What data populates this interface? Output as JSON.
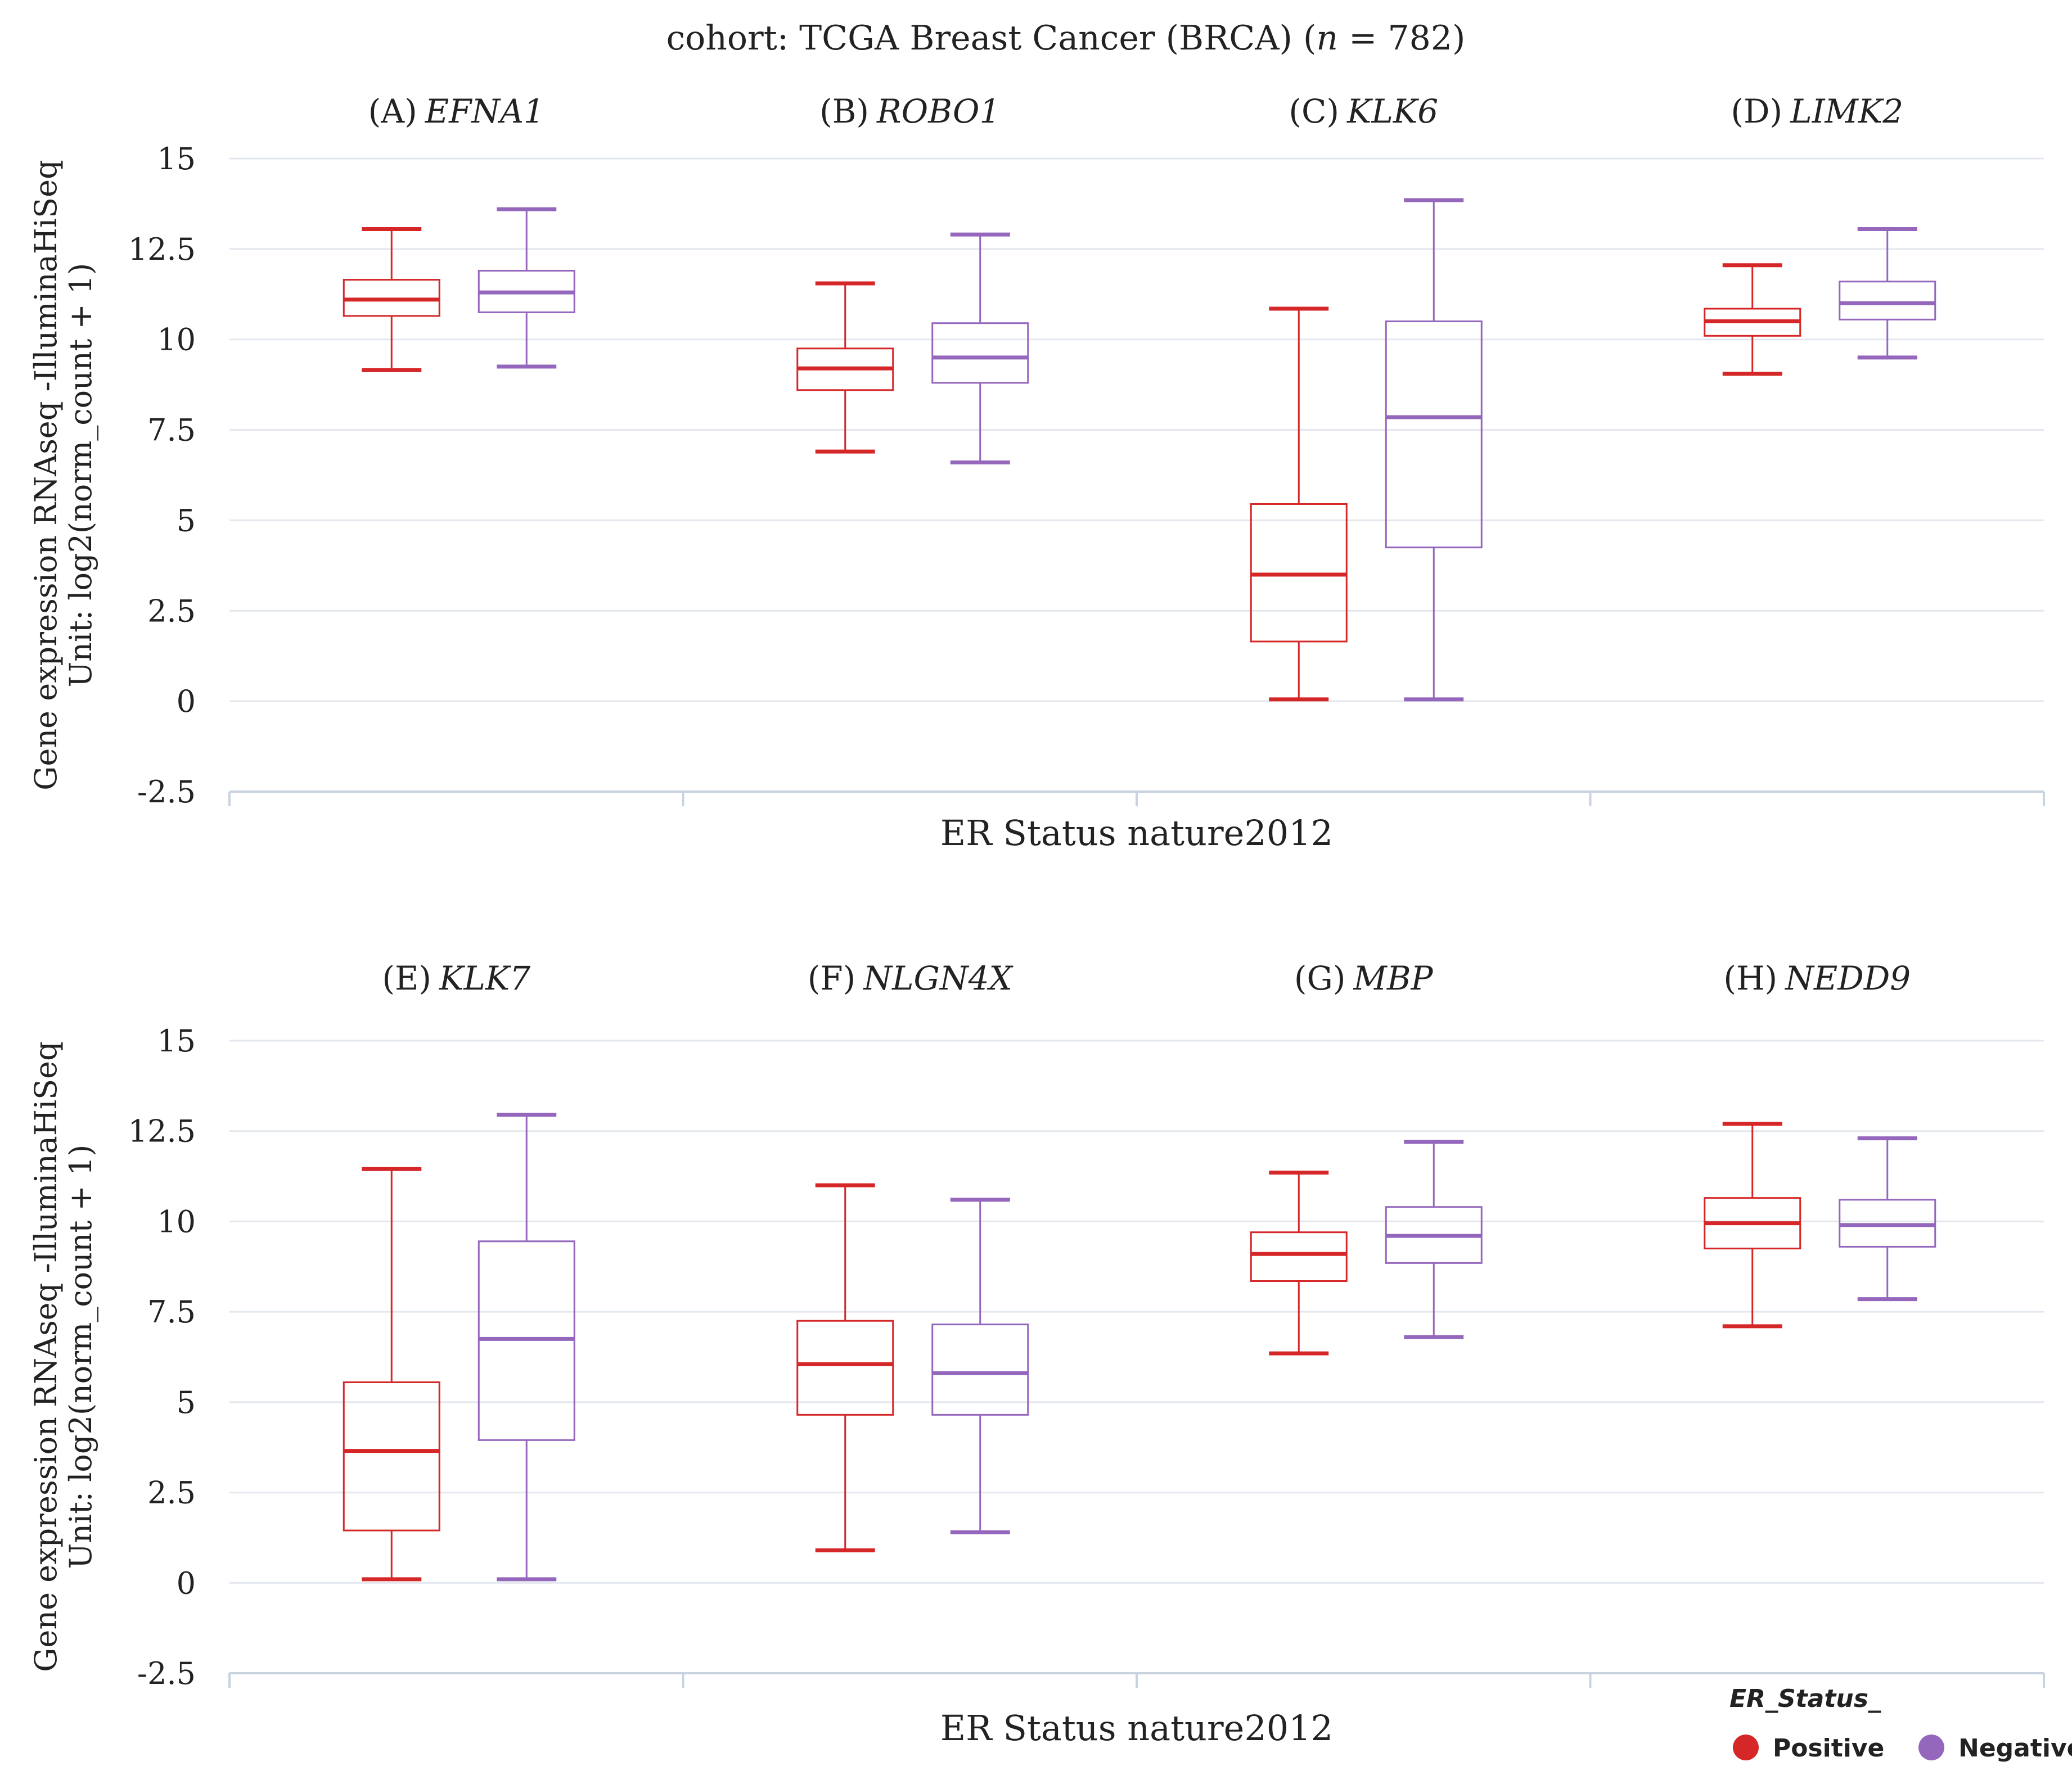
{
  "title": {
    "prefix": "cohort: TCGA Breast Cancer (BRCA) (",
    "n_symbol": "n",
    "n_value": " = 782)"
  },
  "colors": {
    "positive": "#d62728",
    "negative": "#9467bd",
    "grid": "#e3e7ee",
    "axis": "#c9d3e0"
  },
  "legend": {
    "title": "ER_Status_",
    "positive": "Positive",
    "negative": "Negative"
  },
  "chart_data": [
    {
      "type": "boxplot",
      "xlabel": "ER Status nature2012",
      "ylabel": [
        "Gene expression RNAseq -IlluminaHiSeq",
        "Unit: log2(norm_count + 1)"
      ],
      "ylim": [
        -2.5,
        15
      ],
      "yticks": [
        "-2.5",
        "0",
        "2.5",
        "5",
        "7.5",
        "10",
        "12.5",
        "15"
      ],
      "panels": [
        {
          "letter": "(A)",
          "gene": "EFNA1",
          "positive": {
            "min": 9.15,
            "q1": 10.65,
            "median": 11.1,
            "q3": 11.65,
            "max": 13.05
          },
          "negative": {
            "min": 9.25,
            "q1": 10.75,
            "median": 11.3,
            "q3": 11.9,
            "max": 13.6
          }
        },
        {
          "letter": "(B)",
          "gene": "ROBO1",
          "positive": {
            "min": 6.9,
            "q1": 8.6,
            "median": 9.2,
            "q3": 9.75,
            "max": 11.55
          },
          "negative": {
            "min": 6.6,
            "q1": 8.8,
            "median": 9.5,
            "q3": 10.45,
            "max": 12.9
          }
        },
        {
          "letter": "(C)",
          "gene": "KLK6",
          "positive": {
            "min": 0.05,
            "q1": 1.65,
            "median": 3.5,
            "q3": 5.45,
            "max": 10.85
          },
          "negative": {
            "min": 0.05,
            "q1": 4.25,
            "median": 7.85,
            "q3": 10.5,
            "max": 13.85
          }
        },
        {
          "letter": "(D)",
          "gene": "LIMK2",
          "positive": {
            "min": 9.05,
            "q1": 10.1,
            "median": 10.5,
            "q3": 10.85,
            "max": 12.05
          },
          "negative": {
            "min": 9.5,
            "q1": 10.55,
            "median": 11.0,
            "q3": 11.6,
            "max": 13.05
          }
        }
      ]
    },
    {
      "type": "boxplot",
      "xlabel": "ER Status nature2012",
      "ylabel": [
        "Gene expression RNAseq -IlluminaHiSeq",
        "Unit: log2(norm_count + 1)"
      ],
      "ylim": [
        -2.5,
        15
      ],
      "yticks": [
        "-2.5",
        "0",
        "2.5",
        "5",
        "7.5",
        "10",
        "12.5",
        "15"
      ],
      "panels": [
        {
          "letter": "(E)",
          "gene": "KLK7",
          "positive": {
            "min": 0.1,
            "q1": 1.45,
            "median": 3.65,
            "q3": 5.55,
            "max": 11.45
          },
          "negative": {
            "min": 0.1,
            "q1": 3.95,
            "median": 6.75,
            "q3": 9.45,
            "max": 12.95
          }
        },
        {
          "letter": "(F)",
          "gene": "NLGN4X",
          "positive": {
            "min": 0.9,
            "q1": 4.65,
            "median": 6.05,
            "q3": 7.25,
            "max": 11.0
          },
          "negative": {
            "min": 1.4,
            "q1": 4.65,
            "median": 5.8,
            "q3": 7.15,
            "max": 10.6
          }
        },
        {
          "letter": "(G)",
          "gene": "MBP",
          "positive": {
            "min": 6.35,
            "q1": 8.35,
            "median": 9.1,
            "q3": 9.7,
            "max": 11.35
          },
          "negative": {
            "min": 6.8,
            "q1": 8.85,
            "median": 9.6,
            "q3": 10.4,
            "max": 12.2
          }
        },
        {
          "letter": "(H)",
          "gene": "NEDD9",
          "positive": {
            "min": 7.1,
            "q1": 9.25,
            "median": 9.95,
            "q3": 10.65,
            "max": 12.7
          },
          "negative": {
            "min": 7.85,
            "q1": 9.3,
            "median": 9.9,
            "q3": 10.6,
            "max": 12.3
          }
        }
      ]
    }
  ]
}
